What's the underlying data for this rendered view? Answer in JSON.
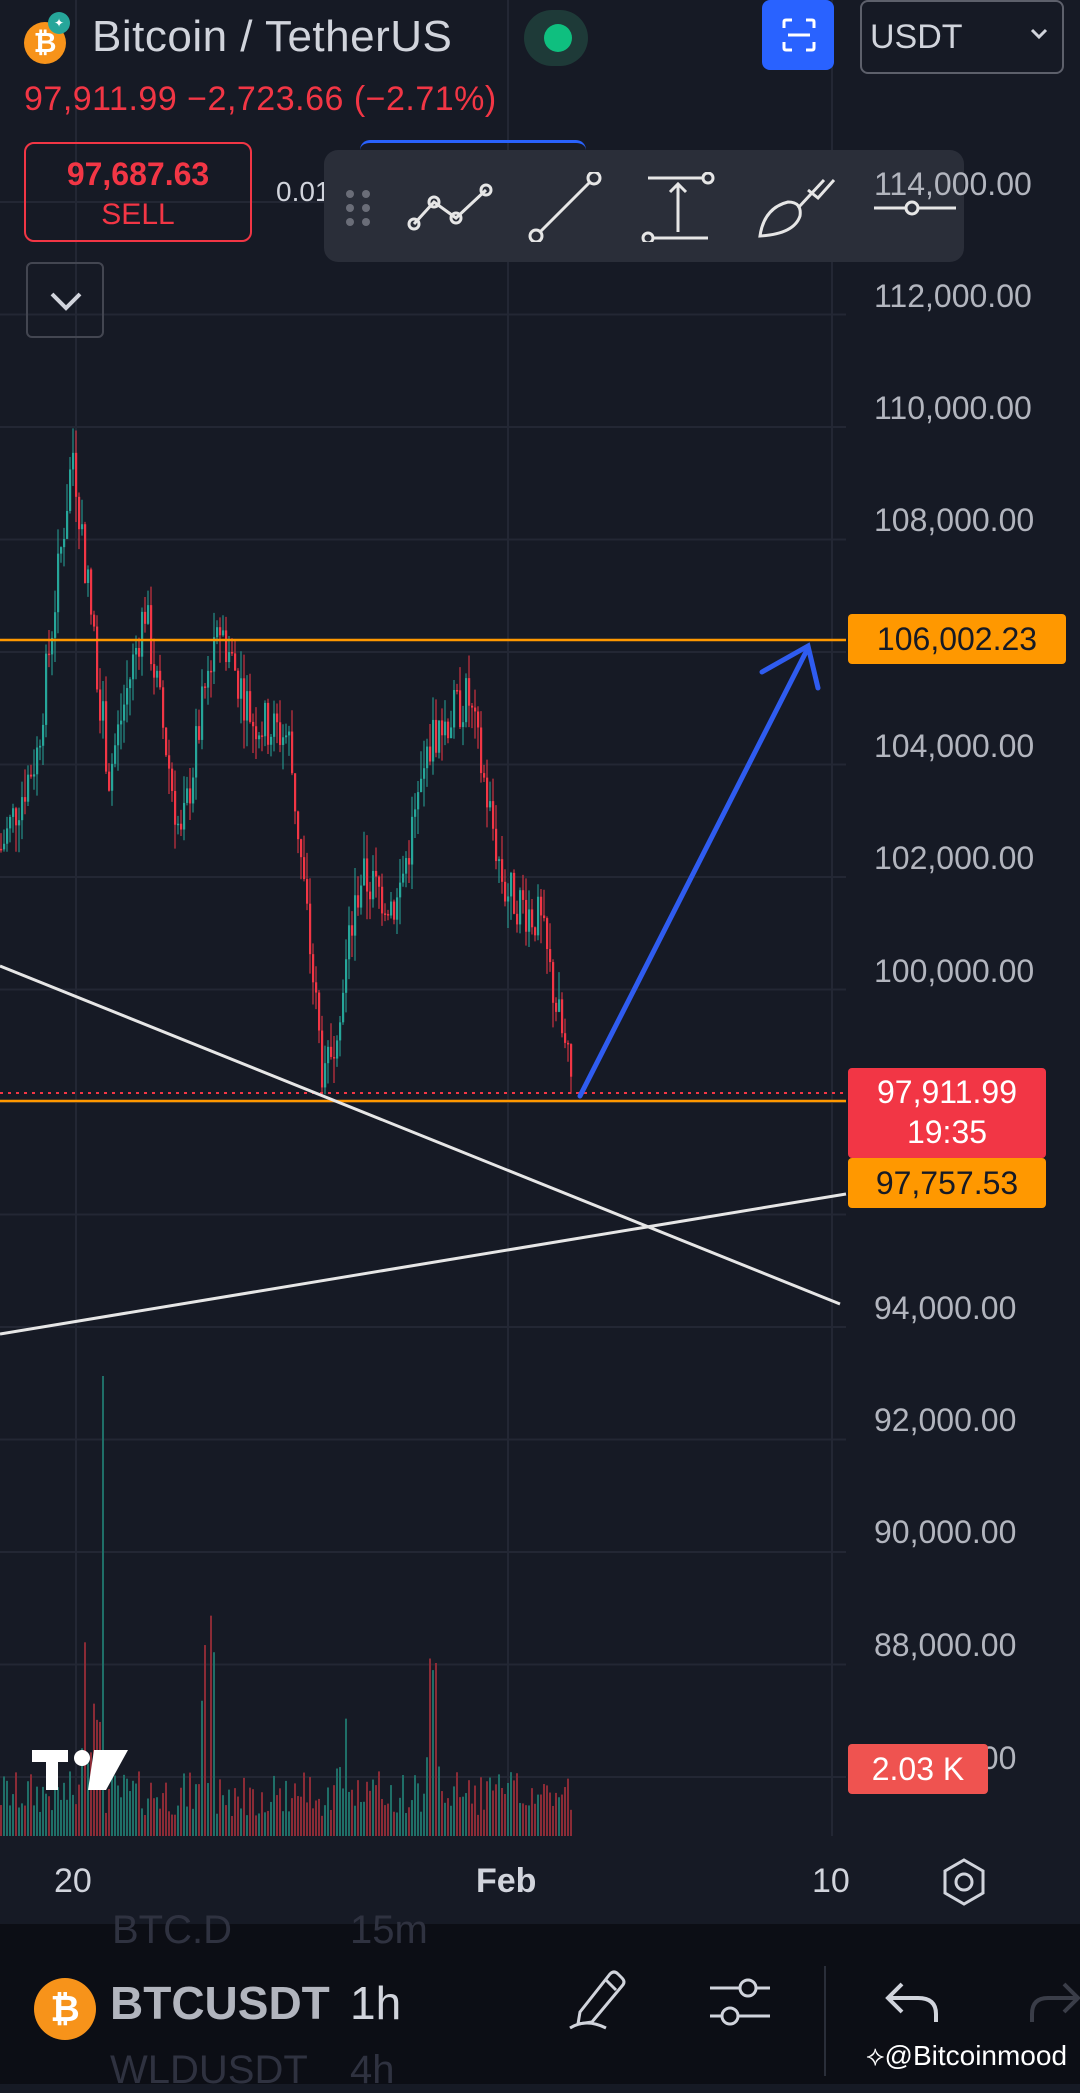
{
  "header": {
    "pair_title": "Bitcoin / TetherUS",
    "currency": "USDT",
    "price_line": "97,911.99  −2,723.66 (−2.71%)",
    "sell_value": "97,687.63",
    "sell_label": "SELL",
    "spread": "0.01",
    "coin_glyph": "₿"
  },
  "colors": {
    "background": "#161a25",
    "bearish": "#f23645",
    "bullish": "#26a69a",
    "level_line": "#ff9800",
    "accent": "#2962ff",
    "arrow": "#2f5cf0"
  },
  "drawing_toolbar": {
    "tools": [
      "drag-handle-icon",
      "polyline-icon",
      "trend-line-icon",
      "price-range-icon",
      "brush-icon",
      "horizontal-ray-icon"
    ]
  },
  "chart": {
    "price_labels": [
      "114,000.00",
      "112,000.00",
      "110,000.00",
      "108,000.00",
      "104,000.00",
      "102,000.00",
      "100,000.00",
      "94,000.00",
      "92,000.00",
      "90,000.00",
      "88,000.00",
      "86,000.00"
    ],
    "tags": {
      "resistance": "106,002.23",
      "last_price": "97,911.99",
      "countdown": "19:35",
      "support": "97,757.53",
      "volume": "2.03 K"
    },
    "time_labels": [
      "20",
      "Feb",
      "10"
    ]
  },
  "chart_data": {
    "type": "candlestick",
    "symbol": "BTCUSDT",
    "interval": "1h",
    "y_axis_ticks": [
      114000,
      112000,
      110000,
      108000,
      106000,
      104000,
      102000,
      100000,
      98000,
      96000,
      94000,
      92000,
      90000,
      88000,
      86000
    ],
    "x_axis_ticks": [
      "20",
      "Feb",
      "10"
    ],
    "last_price": 97911.99,
    "change": -2723.66,
    "change_percent": -2.71,
    "horizontal_levels": [
      106002.23,
      97757.53
    ],
    "volume_last": "2.03 K",
    "close_path": [
      {
        "x": "Jan 17",
        "y": 102500
      },
      {
        "x": "Jan 19",
        "y": 104200
      },
      {
        "x": "Jan 20",
        "y": 109600
      },
      {
        "x": "Jan 21",
        "y": 103800
      },
      {
        "x": "Jan 22",
        "y": 106800
      },
      {
        "x": "Jan 23",
        "y": 102600
      },
      {
        "x": "Jan 24",
        "y": 106600
      },
      {
        "x": "Jan 25",
        "y": 104800
      },
      {
        "x": "Jan 26",
        "y": 104500
      },
      {
        "x": "Jan 27",
        "y": 98200
      },
      {
        "x": "Jan 28",
        "y": 102000
      },
      {
        "x": "Jan 29",
        "y": 101500
      },
      {
        "x": "Jan 30",
        "y": 104500
      },
      {
        "x": "Jan 31",
        "y": 105200
      },
      {
        "x": "Feb 1",
        "y": 101800
      },
      {
        "x": "Feb 2",
        "y": 101200
      },
      {
        "x": "Feb 3",
        "y": 97900
      }
    ],
    "annotations": [
      {
        "type": "arrow",
        "from": {
          "x": "Feb 3",
          "y": 98000
        },
        "to": {
          "x": "Feb 6",
          "y": 106000
        }
      },
      {
        "type": "trend_line",
        "from": {
          "x": "Jan 16",
          "y": 100100
        },
        "to": {
          "x": "Feb 6",
          "y": 94100
        }
      },
      {
        "type": "trend_line",
        "from": {
          "x": "Jan 16",
          "y": 93600
        },
        "to": {
          "x": "Feb 6",
          "y": 96900
        }
      }
    ]
  },
  "bottom_bar": {
    "symbol": "BTCUSDT",
    "interval": "1h",
    "ghost_symbol_top": "BTC.D",
    "ghost_interval_top": "15m",
    "ghost_symbol_bottom": "WLDUSDT",
    "ghost_interval_bottom": "4h"
  },
  "watermark": "@Bitcoinmood"
}
